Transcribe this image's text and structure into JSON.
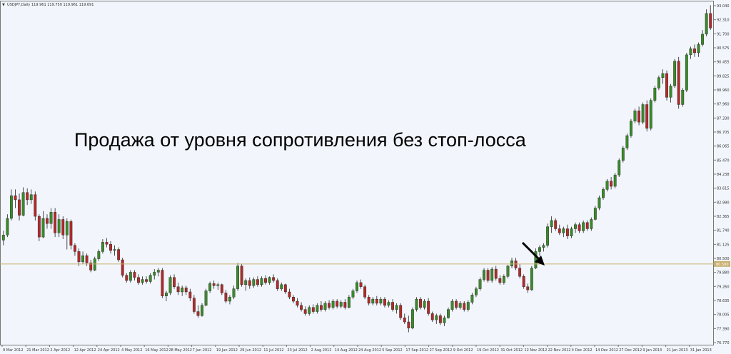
{
  "chart_data": {
    "type": "candlestick",
    "header": "USDJPY,Daily 119.961 119.750 119.961 119.691",
    "annotation": "Продажа от уровня сопротивления без стоп-лосса",
    "ylim": [
      76.77,
      93.044
    ],
    "y_ticks": [
      "93.040",
      "92.310",
      "91.700",
      "90.575",
      "90.455",
      "89.825",
      "88.960",
      "87.960",
      "87.330",
      "86.705",
      "86.065",
      "85.470",
      "84.238",
      "83.615",
      "82.990",
      "82.365",
      "81.740",
      "81.125",
      "80.500",
      "79.880",
      "79.260",
      "78.635",
      "78.005",
      "77.390",
      "76.770"
    ],
    "x_ticks": [
      "9 Mar 2012",
      "21 Mar 2012",
      "2 Apr 2012",
      "12 Apr 2012",
      "24 Apr 2012",
      "4 May 2012",
      "16 May 2012",
      "28 May 2012",
      "7 Jun 2012",
      "19 Jun 2012",
      "29 Jun 2012",
      "11 Jul 2012",
      "23 Jul 2012",
      "2 Aug 2012",
      "14 Aug 2012",
      "24 Aug 2012",
      "5 Sep 2012",
      "17 Sep 2012",
      "27 Sep 2012",
      "9 Oct 2012",
      "19 Oct 2012",
      "31 Oct 2012",
      "12 Nov 2012",
      "22 Nov 2012",
      "4 Dec 2012",
      "14 Dec 2012",
      "27 Dec 2012",
      "9 Jan 2013",
      "21 Jan 2013",
      "31 Jan 2013"
    ],
    "resistance_level": 80.5,
    "resistance_label": "80.500",
    "colors": {
      "up": "#3a8a2a",
      "down": "#b22a2a",
      "level": "#c8b070",
      "background": "#f2f6fc"
    },
    "candles": [
      [
        81.65,
        82.1,
        81.4,
        81.9
      ],
      [
        81.9,
        82.9,
        81.8,
        82.7
      ],
      [
        82.7,
        84.1,
        82.6,
        83.8
      ],
      [
        83.8,
        84.1,
        83.2,
        83.6
      ],
      [
        83.6,
        83.9,
        82.6,
        82.85
      ],
      [
        82.85,
        84.2,
        82.8,
        83.95
      ],
      [
        83.95,
        84.15,
        83.35,
        83.6
      ],
      [
        83.6,
        84.1,
        83.4,
        83.85
      ],
      [
        83.85,
        84.0,
        82.6,
        82.8
      ],
      [
        82.8,
        82.9,
        81.6,
        81.8
      ],
      [
        81.8,
        83.05,
        81.75,
        82.7
      ],
      [
        82.7,
        82.9,
        82.2,
        82.45
      ],
      [
        82.45,
        83.2,
        82.2,
        83.0
      ],
      [
        83.0,
        83.2,
        81.8,
        82.0
      ],
      [
        82.0,
        82.9,
        81.8,
        82.65
      ],
      [
        82.65,
        82.8,
        81.7,
        81.9
      ],
      [
        81.9,
        82.7,
        81.2,
        82.55
      ],
      [
        82.55,
        82.65,
        81.2,
        81.4
      ],
      [
        81.4,
        81.5,
        80.9,
        81.1
      ],
      [
        81.1,
        81.25,
        80.4,
        80.6
      ],
      [
        80.6,
        81.1,
        80.5,
        80.9
      ],
      [
        80.9,
        81.0,
        80.4,
        80.55
      ],
      [
        80.55,
        80.7,
        80.1,
        80.2
      ],
      [
        80.2,
        80.85,
        80.15,
        80.75
      ],
      [
        80.75,
        81.2,
        80.65,
        81.1
      ],
      [
        81.1,
        81.7,
        81.0,
        81.55
      ],
      [
        81.55,
        81.75,
        81.3,
        81.45
      ],
      [
        81.45,
        81.6,
        81.0,
        81.15
      ],
      [
        81.15,
        81.4,
        80.9,
        81.2
      ],
      [
        81.2,
        81.3,
        80.6,
        80.7
      ],
      [
        80.7,
        80.8,
        79.85,
        79.95
      ],
      [
        79.95,
        80.05,
        79.6,
        79.7
      ],
      [
        79.7,
        80.2,
        79.6,
        80.1
      ],
      [
        80.1,
        80.2,
        79.7,
        79.85
      ],
      [
        79.85,
        80.0,
        79.5,
        79.6
      ],
      [
        79.6,
        79.9,
        79.5,
        79.75
      ],
      [
        79.75,
        79.9,
        79.55,
        79.65
      ],
      [
        79.65,
        80.05,
        79.55,
        79.95
      ],
      [
        79.95,
        80.25,
        79.75,
        80.1
      ],
      [
        80.1,
        80.3,
        79.9,
        80.2
      ],
      [
        80.2,
        80.3,
        78.85,
        78.95
      ],
      [
        78.95,
        79.2,
        78.7,
        79.1
      ],
      [
        79.1,
        79.95,
        79.0,
        79.85
      ],
      [
        79.85,
        80.0,
        79.3,
        79.4
      ],
      [
        79.4,
        79.6,
        79.0,
        79.15
      ],
      [
        79.15,
        79.45,
        78.95,
        79.35
      ],
      [
        79.35,
        79.45,
        79.0,
        79.15
      ],
      [
        79.15,
        79.3,
        78.7,
        78.85
      ],
      [
        78.85,
        79.0,
        78.1,
        78.2
      ],
      [
        78.2,
        78.5,
        77.9,
        78.0
      ],
      [
        78.0,
        78.6,
        77.95,
        78.5
      ],
      [
        78.5,
        79.3,
        78.45,
        79.2
      ],
      [
        79.2,
        79.65,
        79.1,
        79.55
      ],
      [
        79.55,
        79.7,
        79.3,
        79.45
      ],
      [
        79.45,
        79.6,
        79.25,
        79.5
      ],
      [
        79.5,
        79.55,
        79.0,
        79.1
      ],
      [
        79.1,
        79.25,
        78.6,
        78.7
      ],
      [
        78.7,
        79.0,
        78.55,
        78.9
      ],
      [
        78.9,
        79.45,
        78.8,
        79.3
      ],
      [
        79.3,
        80.55,
        79.2,
        80.4
      ],
      [
        80.4,
        80.5,
        79.4,
        79.5
      ],
      [
        79.5,
        79.8,
        79.2,
        79.7
      ],
      [
        79.7,
        79.85,
        79.3,
        79.45
      ],
      [
        79.45,
        79.85,
        79.35,
        79.75
      ],
      [
        79.75,
        79.9,
        79.4,
        79.5
      ],
      [
        79.5,
        79.9,
        79.4,
        79.8
      ],
      [
        79.8,
        79.95,
        79.5,
        79.6
      ],
      [
        79.6,
        79.9,
        79.5,
        79.85
      ],
      [
        79.85,
        80.0,
        79.6,
        79.7
      ],
      [
        79.7,
        79.8,
        79.2,
        79.3
      ],
      [
        79.3,
        79.6,
        79.2,
        79.5
      ],
      [
        79.5,
        79.55,
        79.05,
        79.15
      ],
      [
        79.15,
        79.3,
        78.8,
        78.9
      ],
      [
        78.9,
        79.0,
        78.6,
        78.7
      ],
      [
        78.7,
        78.85,
        78.4,
        78.5
      ],
      [
        78.5,
        78.65,
        78.2,
        78.3
      ],
      [
        78.3,
        78.45,
        78.0,
        78.1
      ],
      [
        78.1,
        78.5,
        78.0,
        78.4
      ],
      [
        78.4,
        78.55,
        78.1,
        78.2
      ],
      [
        78.2,
        78.6,
        78.1,
        78.5
      ],
      [
        78.5,
        78.7,
        78.2,
        78.3
      ],
      [
        78.3,
        78.7,
        78.2,
        78.6
      ],
      [
        78.6,
        78.75,
        78.3,
        78.4
      ],
      [
        78.4,
        78.8,
        78.3,
        78.7
      ],
      [
        78.7,
        78.8,
        78.35,
        78.45
      ],
      [
        78.45,
        78.75,
        78.35,
        78.65
      ],
      [
        78.65,
        78.8,
        78.3,
        78.4
      ],
      [
        78.4,
        79.0,
        78.35,
        78.9
      ],
      [
        78.9,
        79.3,
        78.8,
        79.2
      ],
      [
        79.2,
        79.7,
        79.1,
        79.6
      ],
      [
        79.6,
        79.75,
        79.3,
        79.4
      ],
      [
        79.4,
        79.5,
        78.8,
        78.9
      ],
      [
        78.9,
        79.0,
        78.5,
        78.6
      ],
      [
        78.6,
        78.9,
        78.5,
        78.8
      ],
      [
        78.8,
        78.95,
        78.5,
        78.6
      ],
      [
        78.6,
        78.9,
        78.5,
        78.8
      ],
      [
        78.8,
        78.9,
        78.4,
        78.5
      ],
      [
        78.5,
        78.75,
        78.4,
        78.65
      ],
      [
        78.65,
        78.8,
        78.2,
        78.3
      ],
      [
        78.3,
        78.6,
        78.1,
        78.5
      ],
      [
        78.5,
        78.6,
        77.8,
        77.9
      ],
      [
        77.9,
        78.1,
        77.6,
        77.7
      ],
      [
        77.7,
        78.0,
        77.2,
        77.4
      ],
      [
        77.4,
        78.4,
        77.35,
        78.3
      ],
      [
        78.3,
        78.9,
        78.2,
        78.8
      ],
      [
        78.8,
        78.9,
        78.3,
        78.4
      ],
      [
        78.4,
        78.8,
        78.3,
        78.7
      ],
      [
        78.7,
        78.85,
        78.0,
        78.1
      ],
      [
        78.1,
        78.2,
        77.7,
        77.8
      ],
      [
        77.8,
        78.1,
        77.6,
        78.0
      ],
      [
        78.0,
        78.1,
        77.55,
        77.65
      ],
      [
        77.65,
        78.0,
        77.5,
        77.9
      ],
      [
        77.9,
        78.4,
        77.85,
        78.3
      ],
      [
        78.3,
        78.8,
        78.2,
        78.7
      ],
      [
        78.7,
        78.8,
        78.3,
        78.4
      ],
      [
        78.4,
        78.7,
        78.3,
        78.6
      ],
      [
        78.6,
        78.7,
        78.2,
        78.3
      ],
      [
        78.3,
        78.75,
        78.2,
        78.65
      ],
      [
        78.65,
        79.1,
        78.55,
        79.0
      ],
      [
        79.0,
        79.4,
        78.9,
        79.3
      ],
      [
        79.3,
        79.85,
        79.2,
        79.75
      ],
      [
        79.75,
        80.3,
        79.65,
        80.2
      ],
      [
        80.2,
        80.3,
        79.6,
        79.7
      ],
      [
        79.7,
        80.35,
        79.6,
        80.25
      ],
      [
        80.25,
        80.4,
        79.7,
        79.8
      ],
      [
        79.8,
        79.95,
        79.5,
        79.6
      ],
      [
        79.6,
        80.0,
        79.5,
        79.9
      ],
      [
        79.9,
        80.45,
        79.8,
        80.4
      ],
      [
        80.4,
        80.8,
        80.3,
        80.65
      ],
      [
        80.65,
        80.8,
        80.2,
        80.3
      ],
      [
        80.3,
        80.5,
        79.8,
        79.9
      ],
      [
        79.9,
        80.0,
        79.3,
        79.4
      ],
      [
        79.4,
        79.55,
        79.1,
        79.25
      ],
      [
        79.25,
        80.4,
        79.2,
        80.3
      ],
      [
        80.3,
        81.25,
        80.25,
        81.1
      ],
      [
        81.1,
        81.4,
        80.9,
        81.3
      ],
      [
        81.3,
        81.5,
        81.1,
        81.4
      ],
      [
        81.4,
        82.45,
        81.3,
        82.3
      ],
      [
        82.3,
        82.8,
        82.0,
        82.6
      ],
      [
        82.6,
        82.7,
        82.1,
        82.2
      ],
      [
        82.2,
        82.4,
        81.9,
        82.0
      ],
      [
        82.0,
        82.3,
        81.8,
        82.2
      ],
      [
        82.2,
        82.4,
        81.7,
        81.85
      ],
      [
        81.85,
        82.3,
        81.75,
        82.2
      ],
      [
        82.2,
        82.5,
        82.0,
        82.4
      ],
      [
        82.4,
        82.5,
        82.0,
        82.1
      ],
      [
        82.1,
        82.6,
        82.0,
        82.5
      ],
      [
        82.5,
        82.6,
        82.1,
        82.2
      ],
      [
        82.2,
        82.75,
        82.1,
        82.65
      ],
      [
        82.65,
        83.3,
        82.6,
        83.2
      ],
      [
        83.2,
        83.8,
        83.1,
        83.7
      ],
      [
        83.7,
        84.2,
        83.6,
        84.1
      ],
      [
        84.1,
        84.6,
        84.0,
        84.5
      ],
      [
        84.5,
        84.7,
        84.1,
        84.25
      ],
      [
        84.25,
        84.9,
        84.15,
        84.8
      ],
      [
        84.8,
        85.6,
        84.7,
        85.5
      ],
      [
        85.5,
        86.2,
        85.4,
        86.1
      ],
      [
        86.1,
        86.8,
        86.0,
        86.7
      ],
      [
        86.7,
        87.5,
        86.6,
        87.4
      ],
      [
        87.4,
        88.0,
        87.3,
        87.9
      ],
      [
        87.9,
        88.1,
        87.2,
        87.35
      ],
      [
        87.35,
        88.3,
        87.25,
        88.2
      ],
      [
        88.2,
        88.4,
        86.9,
        87.05
      ],
      [
        87.05,
        88.5,
        86.95,
        88.4
      ],
      [
        88.4,
        89.1,
        88.3,
        89.0
      ],
      [
        89.0,
        89.6,
        88.9,
        89.5
      ],
      [
        89.5,
        89.9,
        89.2,
        89.7
      ],
      [
        89.7,
        89.85,
        88.4,
        88.55
      ],
      [
        88.55,
        89.2,
        88.3,
        89.1
      ],
      [
        89.1,
        90.4,
        89.0,
        90.3
      ],
      [
        90.3,
        90.5,
        88.0,
        88.2
      ],
      [
        88.2,
        89.0,
        88.1,
        88.9
      ],
      [
        88.9,
        90.7,
        88.8,
        90.6
      ],
      [
        90.6,
        91.0,
        90.4,
        90.9
      ],
      [
        90.9,
        91.1,
        90.5,
        90.7
      ],
      [
        90.7,
        91.2,
        90.5,
        91.1
      ],
      [
        91.1,
        91.8,
        91.0,
        91.6
      ],
      [
        91.6,
        92.8,
        91.5,
        92.6
      ],
      [
        92.6,
        93.0,
        91.8,
        91.9
      ]
    ]
  }
}
